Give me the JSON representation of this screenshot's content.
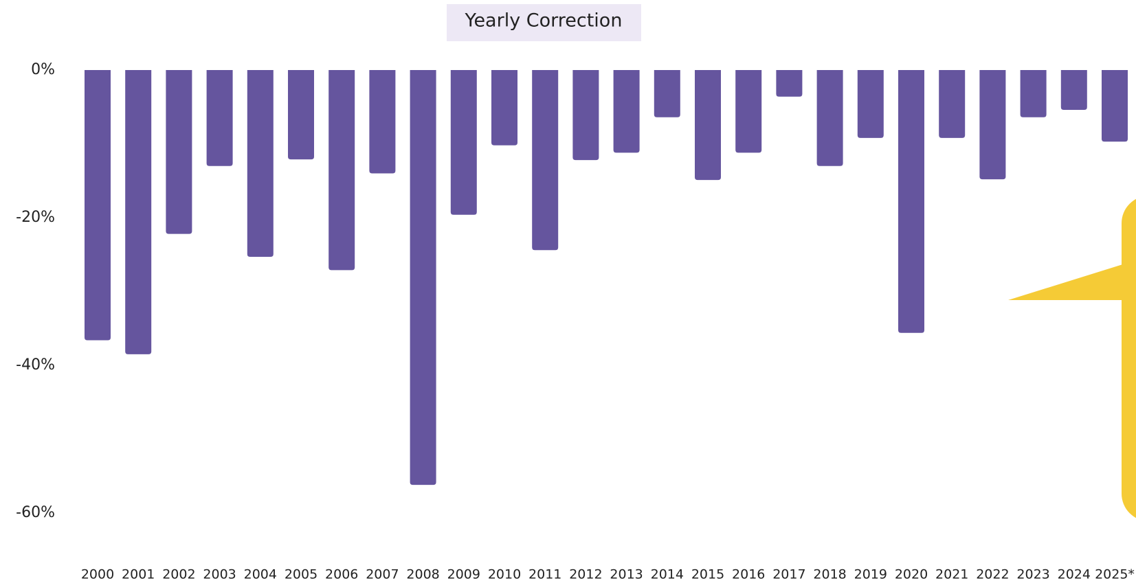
{
  "chart_data": {
    "type": "bar",
    "title": "Yearly Correction",
    "categories": [
      "2000",
      "2001",
      "2002",
      "2003",
      "2004",
      "2005",
      "2006",
      "2007",
      "2008",
      "2009",
      "2010",
      "2011",
      "2012",
      "2013",
      "2014",
      "2015",
      "2016",
      "2017",
      "2018",
      "2019",
      "2020",
      "2021",
      "2022",
      "2023",
      "2024",
      "2025*"
    ],
    "values": [
      -36.6,
      -38.5,
      -22.2,
      -13.0,
      -25.3,
      -12.1,
      -27.1,
      -14.0,
      -56.2,
      -19.6,
      -10.2,
      -24.4,
      -12.2,
      -11.2,
      -6.4,
      -14.9,
      -11.2,
      -3.6,
      -13.0,
      -9.2,
      -35.6,
      -9.2,
      -14.8,
      -6.4,
      -5.4,
      -9.7
    ],
    "color": "#65559e",
    "ylim": [
      -60,
      0
    ],
    "yticks": [
      {
        "value": 0,
        "label": "0%"
      },
      {
        "value": -20,
        "label": "-20%"
      },
      {
        "value": -40,
        "label": "-40%"
      },
      {
        "value": -60,
        "label": "-60%"
      }
    ],
    "grid": false
  }
}
